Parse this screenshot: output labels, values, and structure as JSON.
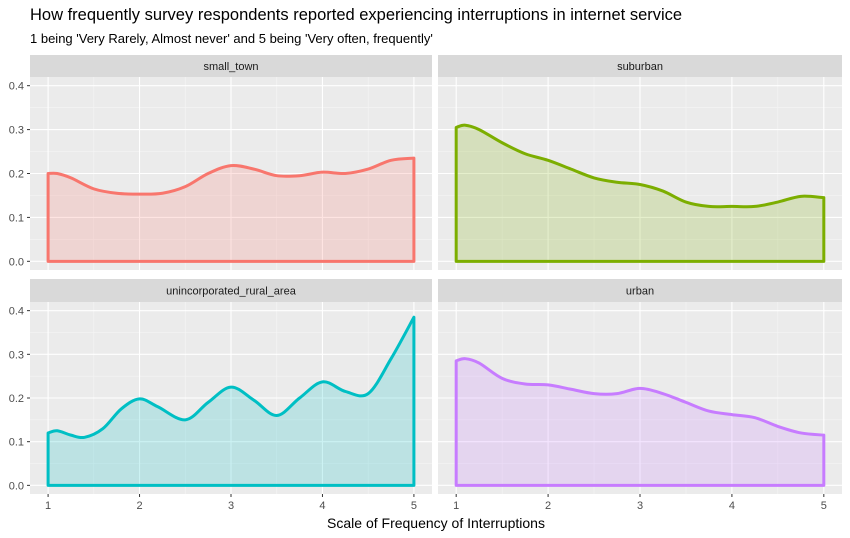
{
  "chart_data": {
    "type": "area",
    "title": "How frequently survey respondents reported experiencing interruptions in internet service",
    "subtitle": "1 being 'Very Rarely, Almost never' and 5 being 'Very often, frequently'",
    "xlabel": "Scale of Frequency of Interruptions",
    "ylabel": "",
    "xlim": [
      1,
      5
    ],
    "ylim": [
      0,
      0.4
    ],
    "x_ticks": [
      1,
      2,
      3,
      4,
      5
    ],
    "y_ticks": [
      0.0,
      0.1,
      0.2,
      0.3,
      0.4
    ],
    "y_tick_labels": [
      "0.0",
      "0.1",
      "0.2",
      "0.3",
      "0.4"
    ],
    "grid": true,
    "legend": "none",
    "facets": [
      {
        "name": "small_town",
        "color": "#F8766D",
        "x": [
          1.0,
          1.1,
          1.25,
          1.5,
          1.75,
          2.0,
          2.25,
          2.5,
          2.75,
          3.0,
          3.25,
          3.5,
          3.75,
          4.0,
          4.25,
          4.5,
          4.75,
          5.0
        ],
        "y": [
          0.2,
          0.2,
          0.19,
          0.165,
          0.155,
          0.153,
          0.155,
          0.17,
          0.2,
          0.218,
          0.21,
          0.195,
          0.195,
          0.203,
          0.2,
          0.21,
          0.23,
          0.235
        ]
      },
      {
        "name": "suburban",
        "color": "#7CAE00",
        "x": [
          1.0,
          1.1,
          1.25,
          1.5,
          1.75,
          2.0,
          2.25,
          2.5,
          2.75,
          3.0,
          3.25,
          3.5,
          3.75,
          4.0,
          4.25,
          4.5,
          4.75,
          5.0
        ],
        "y": [
          0.305,
          0.31,
          0.3,
          0.27,
          0.245,
          0.23,
          0.21,
          0.19,
          0.18,
          0.175,
          0.16,
          0.135,
          0.125,
          0.125,
          0.125,
          0.135,
          0.148,
          0.145
        ]
      },
      {
        "name": "unincorporated_rural_area",
        "color": "#00BFC4",
        "x": [
          1.0,
          1.1,
          1.25,
          1.4,
          1.6,
          1.8,
          2.0,
          2.2,
          2.5,
          2.75,
          3.0,
          3.25,
          3.5,
          3.75,
          4.0,
          4.25,
          4.5,
          4.75,
          5.0
        ],
        "y": [
          0.12,
          0.125,
          0.115,
          0.11,
          0.13,
          0.175,
          0.198,
          0.18,
          0.15,
          0.19,
          0.225,
          0.195,
          0.16,
          0.2,
          0.237,
          0.215,
          0.21,
          0.29,
          0.385
        ]
      },
      {
        "name": "urban",
        "color": "#C77CFF",
        "x": [
          1.0,
          1.1,
          1.25,
          1.5,
          1.75,
          2.0,
          2.25,
          2.5,
          2.75,
          3.0,
          3.25,
          3.5,
          3.75,
          4.0,
          4.25,
          4.5,
          4.75,
          5.0
        ],
        "y": [
          0.285,
          0.29,
          0.28,
          0.245,
          0.232,
          0.23,
          0.22,
          0.21,
          0.21,
          0.222,
          0.21,
          0.19,
          0.17,
          0.162,
          0.155,
          0.135,
          0.12,
          0.115
        ]
      }
    ]
  }
}
